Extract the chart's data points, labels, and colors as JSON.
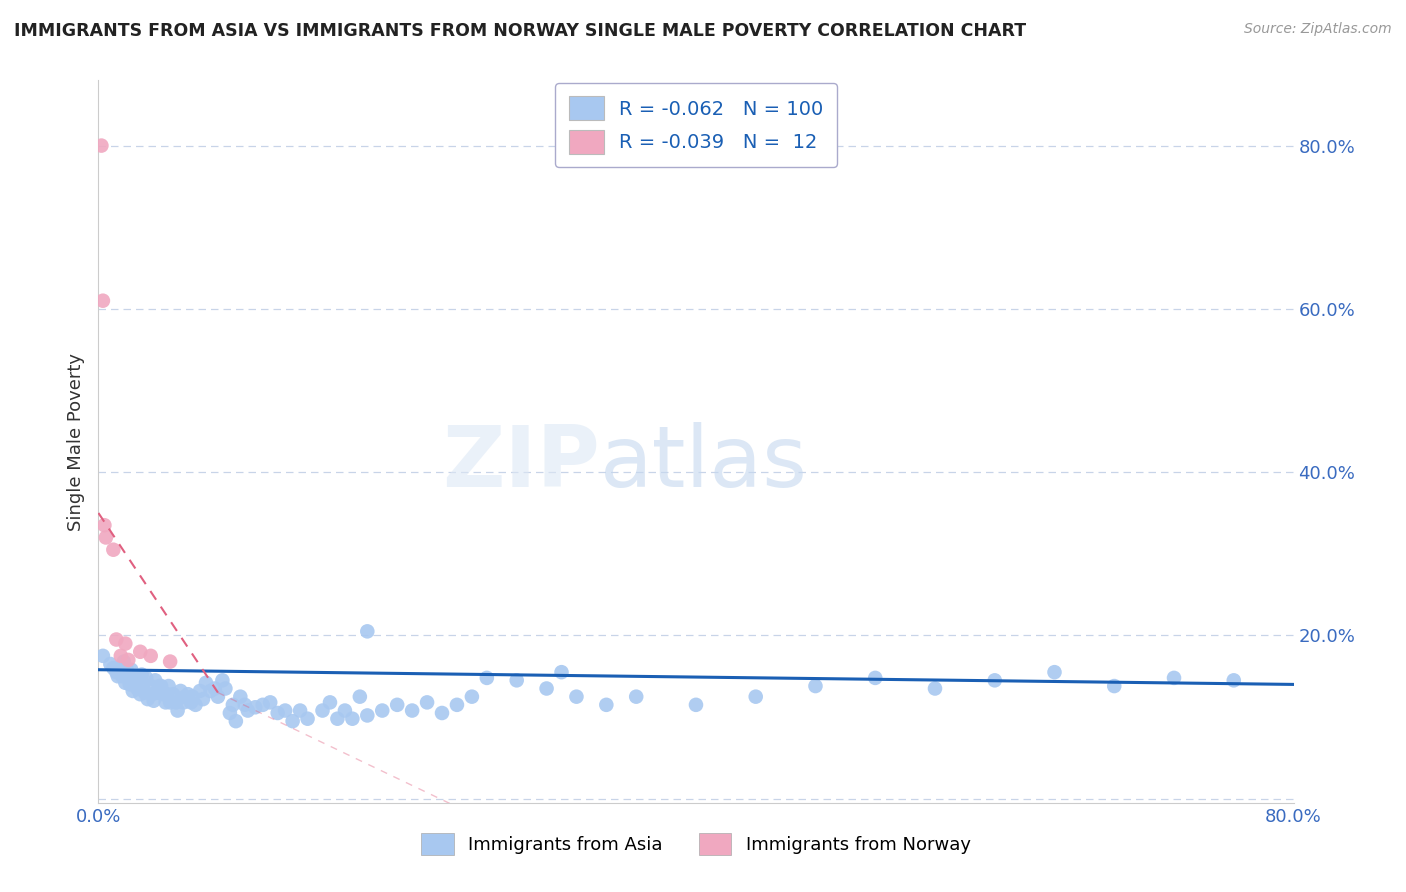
{
  "title": "IMMIGRANTS FROM ASIA VS IMMIGRANTS FROM NORWAY SINGLE MALE POVERTY CORRELATION CHART",
  "source": "Source: ZipAtlas.com",
  "ylabel": "Single Male Poverty",
  "xlim": [
    0.0,
    0.8
  ],
  "ylim": [
    -0.005,
    0.88
  ],
  "legend_asia_r": "-0.062",
  "legend_asia_n": "100",
  "legend_norway_r": "-0.039",
  "legend_norway_n": "12",
  "asia_color": "#a8c8f0",
  "norway_color": "#f0a8c0",
  "asia_line_color": "#1a5fb4",
  "norway_line_color": "#e06080",
  "grid_color": "#c8d4e8",
  "yticks": [
    0.0,
    0.2,
    0.4,
    0.6,
    0.8
  ],
  "ytick_labels": [
    "",
    "20.0%",
    "40.0%",
    "60.0%",
    "80.0%"
  ],
  "xtick_labels": [
    "0.0%",
    "",
    "",
    "",
    "",
    "",
    "",
    "",
    "",
    "",
    "",
    "",
    "",
    "",
    "",
    "",
    "80.0%"
  ],
  "asia_x": [
    0.003,
    0.008,
    0.01,
    0.012,
    0.013,
    0.015,
    0.016,
    0.017,
    0.018,
    0.019,
    0.02,
    0.021,
    0.022,
    0.023,
    0.024,
    0.025,
    0.026,
    0.027,
    0.028,
    0.029,
    0.03,
    0.031,
    0.032,
    0.033,
    0.035,
    0.036,
    0.037,
    0.038,
    0.04,
    0.041,
    0.042,
    0.043,
    0.045,
    0.046,
    0.047,
    0.048,
    0.05,
    0.052,
    0.053,
    0.055,
    0.057,
    0.058,
    0.06,
    0.062,
    0.063,
    0.065,
    0.068,
    0.07,
    0.072,
    0.075,
    0.078,
    0.08,
    0.083,
    0.085,
    0.088,
    0.09,
    0.092,
    0.095,
    0.098,
    0.1,
    0.105,
    0.11,
    0.115,
    0.12,
    0.125,
    0.13,
    0.135,
    0.14,
    0.15,
    0.155,
    0.16,
    0.165,
    0.17,
    0.175,
    0.18,
    0.19,
    0.2,
    0.21,
    0.22,
    0.23,
    0.24,
    0.25,
    0.28,
    0.3,
    0.32,
    0.34,
    0.36,
    0.4,
    0.44,
    0.48,
    0.52,
    0.56,
    0.6,
    0.64,
    0.68,
    0.72,
    0.76,
    0.18,
    0.26,
    0.31
  ],
  "asia_y": [
    0.175,
    0.165,
    0.16,
    0.155,
    0.15,
    0.16,
    0.15,
    0.168,
    0.142,
    0.158,
    0.148,
    0.14,
    0.158,
    0.132,
    0.15,
    0.142,
    0.135,
    0.148,
    0.128,
    0.152,
    0.14,
    0.13,
    0.148,
    0.122,
    0.138,
    0.128,
    0.12,
    0.145,
    0.13,
    0.138,
    0.138,
    0.128,
    0.118,
    0.128,
    0.138,
    0.118,
    0.128,
    0.118,
    0.108,
    0.132,
    0.118,
    0.125,
    0.128,
    0.118,
    0.125,
    0.115,
    0.132,
    0.122,
    0.142,
    0.132,
    0.135,
    0.125,
    0.145,
    0.135,
    0.105,
    0.115,
    0.095,
    0.125,
    0.115,
    0.108,
    0.112,
    0.115,
    0.118,
    0.105,
    0.108,
    0.095,
    0.108,
    0.098,
    0.108,
    0.118,
    0.098,
    0.108,
    0.098,
    0.125,
    0.102,
    0.108,
    0.115,
    0.108,
    0.118,
    0.105,
    0.115,
    0.125,
    0.145,
    0.135,
    0.125,
    0.115,
    0.125,
    0.115,
    0.125,
    0.138,
    0.148,
    0.135,
    0.145,
    0.155,
    0.138,
    0.148,
    0.145,
    0.205,
    0.148,
    0.155
  ],
  "norway_x": [
    0.002,
    0.003,
    0.004,
    0.005,
    0.01,
    0.012,
    0.015,
    0.018,
    0.02,
    0.028,
    0.035,
    0.048
  ],
  "norway_y": [
    0.8,
    0.61,
    0.335,
    0.32,
    0.305,
    0.195,
    0.175,
    0.19,
    0.17,
    0.18,
    0.175,
    0.168
  ]
}
